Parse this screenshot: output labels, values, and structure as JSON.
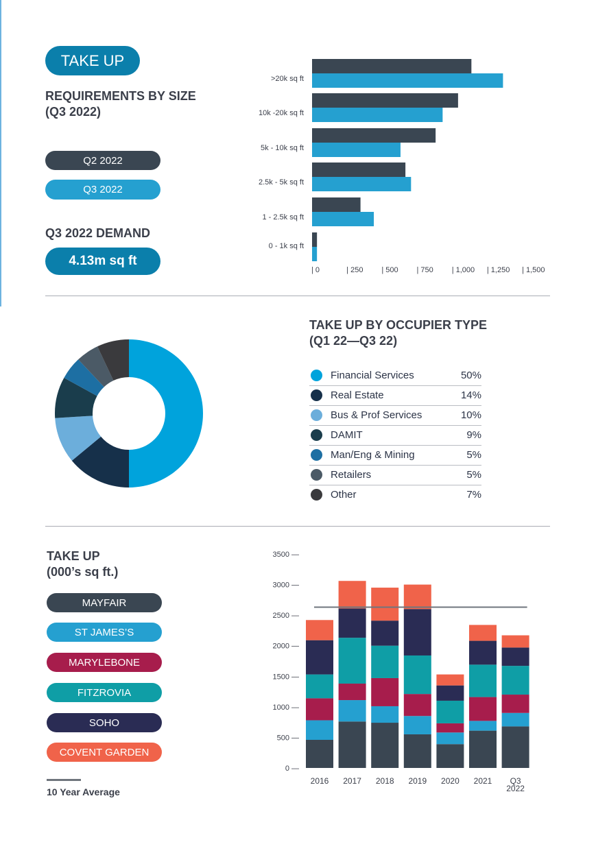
{
  "colors": {
    "q2": "#3a4652",
    "q3": "#25a0d0",
    "pill_blue": "#0b7fab",
    "avg_line": "#6f757d"
  },
  "section1": {
    "badge": "TAKE UP",
    "heading_line1": "REQUIREMENTS BY SIZE",
    "heading_line2": "(Q3 2022)",
    "legend_q2": "Q2 2022",
    "legend_q3": "Q3 2022",
    "demand_label": "Q3 2022 DEMAND",
    "demand_value": "4.13m sq ft"
  },
  "section2": {
    "heading_line1": "TAKE UP BY OCCUPIER TYPE",
    "heading_line2": "(Q1 22—Q3 22)",
    "legend": [
      {
        "name": "Financial Services",
        "pct": "50%",
        "color": "#00a3dc"
      },
      {
        "name": "Real Estate",
        "pct": "14%",
        "color": "#16304a"
      },
      {
        "name": "Bus & Prof Services",
        "pct": "10%",
        "color": "#6caedb"
      },
      {
        "name": "DAMIT",
        "pct": "9%",
        "color": "#1a3d4c"
      },
      {
        "name": "Man/Eng & Mining",
        "pct": "5%",
        "color": "#1d6fa3"
      },
      {
        "name": "Retailers",
        "pct": "5%",
        "color": "#4b5a66"
      },
      {
        "name": "Other",
        "pct": "7%",
        "color": "#3a3a3d"
      }
    ]
  },
  "section3": {
    "heading_line1": "TAKE UP",
    "heading_line2": "(000’s sq ft.)",
    "legend": [
      {
        "name": "MAYFAIR",
        "color": "#3a4652"
      },
      {
        "name": "ST JAMES’S",
        "color": "#25a0d0"
      },
      {
        "name": "MARYLEBONE",
        "color": "#a71d4c"
      },
      {
        "name": "FITZROVIA",
        "color": "#0f9ea6"
      },
      {
        "name": "SOHO",
        "color": "#2a2c54"
      },
      {
        "name": "COVENT GARDEN",
        "color": "#f0634a"
      }
    ],
    "avg_label": "10 Year Average"
  },
  "chart_data": [
    {
      "type": "bar",
      "orientation": "horizontal",
      "categories": [
        ">20k sq ft",
        "10k -20k sq ft",
        "5k - 10k sq ft",
        "2.5k - 5k sq ft",
        "1 - 2.5k sq ft",
        "0 - 1k sq ft"
      ],
      "series": [
        {
          "name": "Q2 2022",
          "values": [
            1135,
            1040,
            880,
            665,
            345,
            35
          ]
        },
        {
          "name": "Q3 2022",
          "values": [
            1360,
            930,
            630,
            705,
            440,
            35
          ]
        }
      ],
      "xlim": [
        0,
        1500
      ],
      "xticks": [
        0,
        250,
        500,
        750,
        1000,
        1250,
        1500
      ],
      "xtick_labels": [
        "| 0",
        "| 250",
        "| 500",
        "| 750",
        "| 1,000",
        "| 1,250",
        "| 1,500"
      ],
      "title": "",
      "xlabel": "",
      "ylabel": ""
    },
    {
      "type": "pie",
      "donut": true,
      "labels": [
        "Financial Services",
        "Real Estate",
        "Bus & Prof Services",
        "DAMIT",
        "Man/Eng & Mining",
        "Retailers",
        "Other"
      ],
      "values": [
        50,
        14,
        10,
        9,
        5,
        5,
        7
      ],
      "colors": [
        "#00a3dc",
        "#16304a",
        "#6caedb",
        "#1a3d4c",
        "#1d6fa3",
        "#4b5a66",
        "#3a3a3d"
      ]
    },
    {
      "type": "bar",
      "stacked": true,
      "categories": [
        "2016",
        "2017",
        "2018",
        "2019",
        "2020",
        "2021",
        "Q3\n2022"
      ],
      "series": [
        {
          "name": "MAYFAIR",
          "values": [
            460,
            760,
            740,
            550,
            390,
            610,
            680
          ]
        },
        {
          "name": "ST JAMES’S",
          "values": [
            320,
            350,
            270,
            300,
            190,
            160,
            220
          ]
        },
        {
          "name": "MARYLEBONE",
          "values": [
            360,
            270,
            460,
            360,
            150,
            390,
            300
          ]
        },
        {
          "name": "FITZROVIA",
          "values": [
            390,
            750,
            530,
            630,
            370,
            530,
            470
          ]
        },
        {
          "name": "SOHO",
          "values": [
            560,
            480,
            410,
            760,
            250,
            390,
            300
          ]
        },
        {
          "name": "COVENT GARDEN",
          "values": [
            330,
            450,
            540,
            400,
            180,
            260,
            200
          ]
        }
      ],
      "average": 2630,
      "ylim": [
        0,
        3500
      ],
      "yticks": [
        0,
        500,
        1000,
        1500,
        2000,
        2500,
        3000,
        3500
      ],
      "ytick_labels": [
        "0 —",
        "500 —",
        "1000 —",
        "1500 —",
        "2000 —",
        "2500 —",
        "3000 —",
        "3500 —"
      ],
      "title": "",
      "xlabel": "",
      "ylabel": ""
    }
  ]
}
